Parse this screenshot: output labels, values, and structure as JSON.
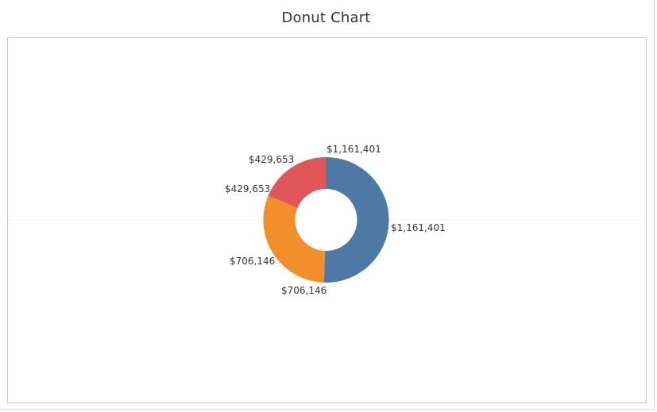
{
  "chart_data": {
    "type": "pie",
    "subtype": "donut",
    "title": "Donut Chart",
    "segments": [
      {
        "label": "$1,161,401",
        "value": 1161401,
        "color": "#4e79a7"
      },
      {
        "label": "$706,146",
        "value": 706146,
        "color": "#f28e2b"
      },
      {
        "label": "$429,653",
        "value": 429653,
        "color": "#e15759"
      }
    ],
    "data_labels": [
      "$1,161,401",
      "$1,161,401",
      "$706,146",
      "$706,146",
      "$429,653",
      "$429,653"
    ],
    "legend": "none"
  }
}
